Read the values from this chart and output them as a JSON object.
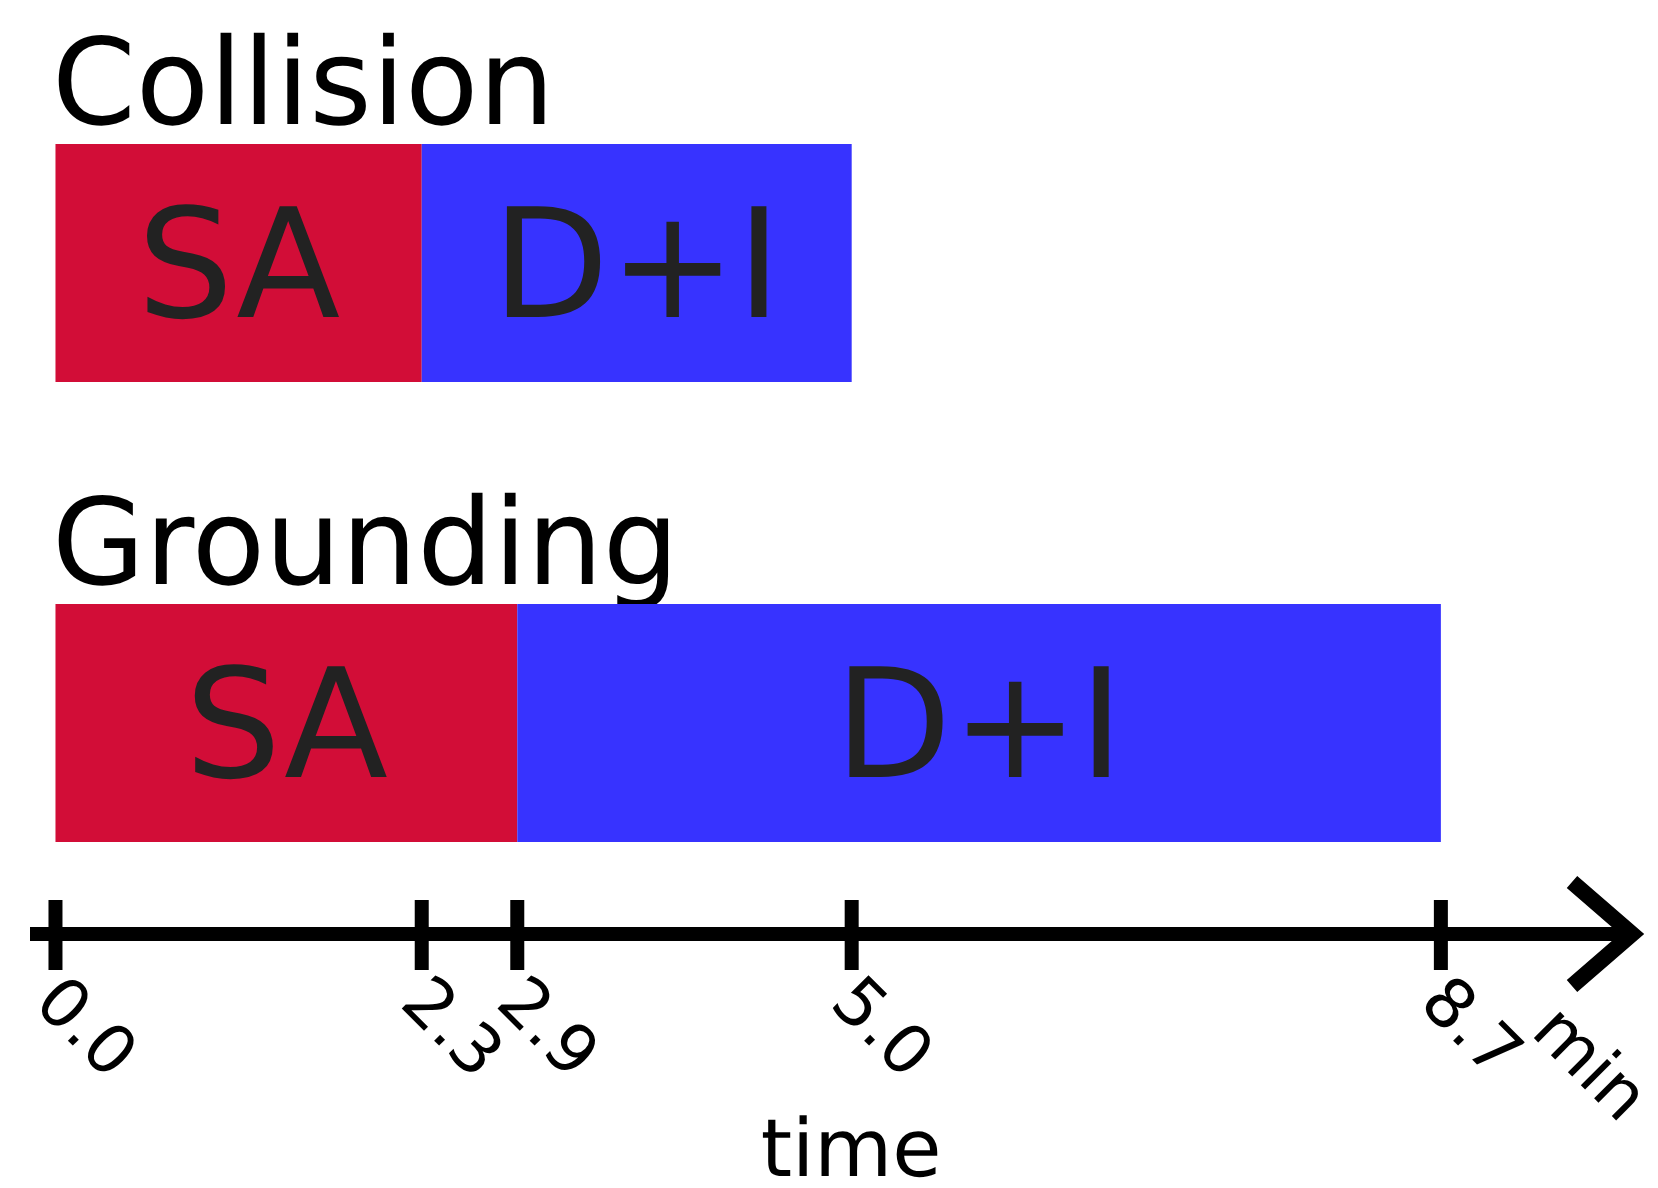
{
  "chart_data": {
    "type": "bar",
    "orientation": "horizontal",
    "stacked": true,
    "grid": false,
    "categories": [
      "Collision",
      "Grounding"
    ],
    "series": [
      {
        "name": "SA",
        "color": "#d20d37",
        "values": [
          2.3,
          2.9
        ]
      },
      {
        "name": "D+I",
        "color": "#3733ff",
        "values": [
          2.7,
          5.8
        ]
      }
    ],
    "xlabel": "time",
    "xlim": [
      -0.16,
      9.85
    ],
    "xticks": [
      {
        "value": 0,
        "label": "0.0"
      },
      {
        "value": 2.3,
        "label": "2.3"
      },
      {
        "value": 2.9,
        "label": "2.9"
      },
      {
        "value": 5.0,
        "label": "5.0"
      },
      {
        "value": 8.7,
        "label": "8.7"
      }
    ],
    "annotations": [
      "min"
    ]
  }
}
